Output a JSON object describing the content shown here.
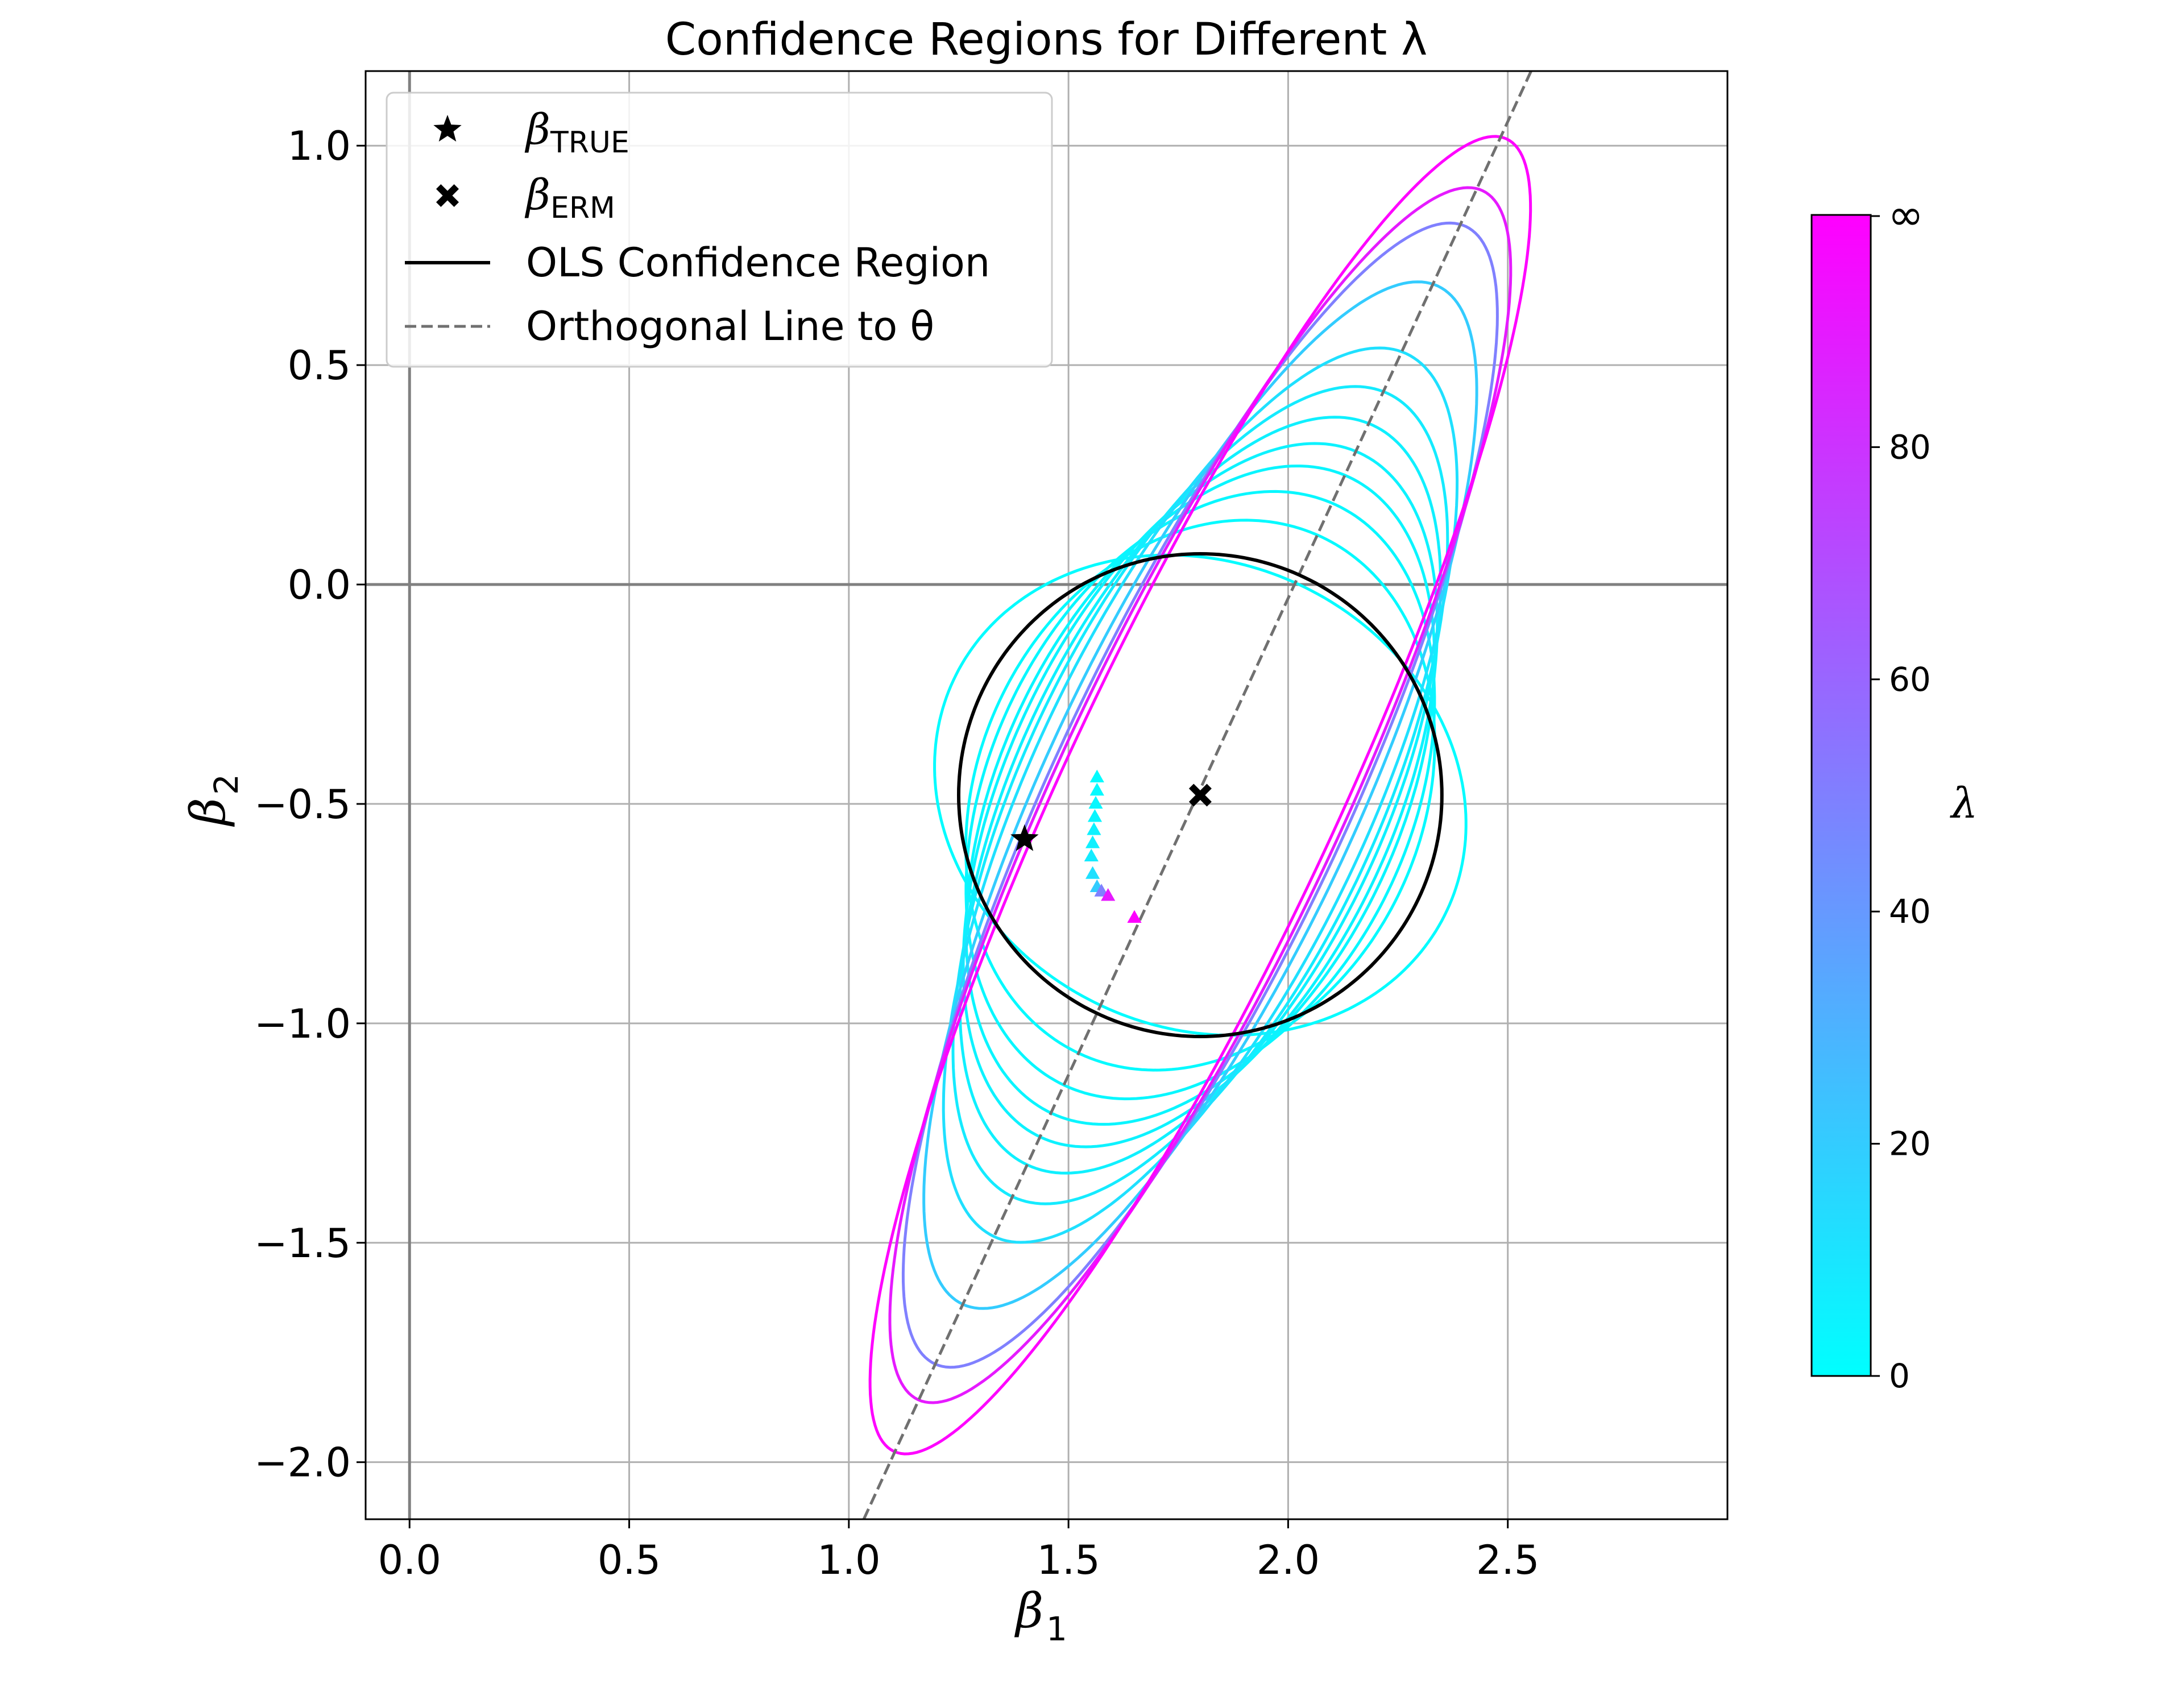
{
  "colors": {
    "ols_region": "#000000",
    "cmap_low": "#00ffff",
    "cmap_high": "#ff00ff",
    "orthogonal_line": "#707070",
    "grid": "#b0b0b0",
    "zero_axes": "#808080"
  },
  "chart_data": {
    "type": "line",
    "title": "Confidence Regions for Different λ",
    "xlabel": {
      "symbol": "β",
      "sub": "1"
    },
    "ylabel": {
      "symbol": "β",
      "sub": "2"
    },
    "xlim": [
      -0.1,
      3.0
    ],
    "ylim": [
      -2.13,
      1.17
    ],
    "xticks": [
      0.0,
      0.5,
      1.0,
      1.5,
      2.0,
      2.5
    ],
    "xtick_labels": [
      "0.0",
      "0.5",
      "1.0",
      "1.5",
      "2.0",
      "2.5"
    ],
    "yticks": [
      1.0,
      0.5,
      0.0,
      -0.5,
      -1.0,
      -1.5,
      -2.0
    ],
    "ytick_labels": [
      "1.0",
      "0.5",
      "0.0",
      "−0.5",
      "−1.0",
      "−1.5",
      "−2.0"
    ],
    "grid": true,
    "zero_lines": true,
    "legend": {
      "placement": "upper-left",
      "entries": [
        {
          "kind": "star",
          "symbol": "β",
          "sub": "TRUE"
        },
        {
          "kind": "cross",
          "symbol": "β",
          "sub": "ERM"
        },
        {
          "kind": "solid",
          "text": "OLS Confidence Region"
        },
        {
          "kind": "dashed",
          "text": "Orthogonal Line to θ"
        }
      ]
    },
    "beta_true": [
      1.4,
      -0.58
    ],
    "beta_erm": [
      1.8,
      -0.48
    ],
    "ols_region": {
      "center": [
        1.8,
        -0.48
      ],
      "semi_axis_1": 0.55,
      "semi_axis_2": 0.55,
      "angle_deg": 0
    },
    "orthogonal_line": [
      [
        1.034,
        -2.13
      ],
      [
        2.553,
        1.17
      ]
    ],
    "regions": [
      {
        "lambda": 1,
        "center": [
          1.8,
          -0.48
        ],
        "semi_axis_1": 0.53,
        "semi_axis_2": 0.62,
        "angle_deg": 65
      },
      {
        "lambda": 2,
        "center": [
          1.8,
          -0.48
        ],
        "semi_axis_1": 0.65,
        "semi_axis_2": 0.505,
        "angle_deg": 65
      },
      {
        "lambda": 3,
        "center": [
          1.8,
          -0.48
        ],
        "semi_axis_1": 0.73,
        "semi_axis_2": 0.48,
        "angle_deg": 65
      },
      {
        "lambda": 4,
        "center": [
          1.8,
          -0.48
        ],
        "semi_axis_1": 0.8,
        "semi_axis_2": 0.455,
        "angle_deg": 65
      },
      {
        "lambda": 5,
        "center": [
          1.8,
          -0.48
        ],
        "semi_axis_1": 0.86,
        "semi_axis_2": 0.44,
        "angle_deg": 65
      },
      {
        "lambda": 6,
        "center": [
          1.8,
          -0.48
        ],
        "semi_axis_1": 0.93,
        "semi_axis_2": 0.42,
        "angle_deg": 65
      },
      {
        "lambda": 8,
        "center": [
          1.8,
          -0.48
        ],
        "semi_axis_1": 1.01,
        "semi_axis_2": 0.405,
        "angle_deg": 65
      },
      {
        "lambda": 12,
        "center": [
          1.8,
          -0.48
        ],
        "semi_axis_1": 1.11,
        "semi_axis_2": 0.385,
        "angle_deg": 65
      },
      {
        "lambda": 20,
        "center": [
          1.8,
          -0.48
        ],
        "semi_axis_1": 1.28,
        "semi_axis_2": 0.355,
        "angle_deg": 65
      },
      {
        "lambda": 50,
        "center": [
          1.8,
          -0.48
        ],
        "semi_axis_1": 1.43,
        "semi_axis_2": 0.335,
        "angle_deg": 65
      },
      {
        "lambda": 90,
        "center": [
          1.8,
          -0.48
        ],
        "semi_axis_1": 1.52,
        "semi_axis_2": 0.325,
        "angle_deg": 65
      },
      {
        "lambda": 100,
        "center": [
          1.8,
          -0.48
        ],
        "semi_axis_1": 1.65,
        "semi_axis_2": 0.31,
        "angle_deg": 65
      }
    ],
    "estimates": [
      {
        "lambda": 1,
        "x": 1.565,
        "y": -0.44
      },
      {
        "lambda": 2,
        "x": 1.565,
        "y": -0.47
      },
      {
        "lambda": 3,
        "x": 1.562,
        "y": -0.5
      },
      {
        "lambda": 4,
        "x": 1.56,
        "y": -0.53
      },
      {
        "lambda": 5,
        "x": 1.558,
        "y": -0.56
      },
      {
        "lambda": 6,
        "x": 1.555,
        "y": -0.59
      },
      {
        "lambda": 8,
        "x": 1.552,
        "y": -0.62
      },
      {
        "lambda": 12,
        "x": 1.555,
        "y": -0.66
      },
      {
        "lambda": 20,
        "x": 1.565,
        "y": -0.69
      },
      {
        "lambda": 50,
        "x": 1.575,
        "y": -0.7
      },
      {
        "lambda": 90,
        "x": 1.59,
        "y": -0.71
      },
      {
        "lambda": 100,
        "x": 1.65,
        "y": -0.76
      }
    ],
    "colorbar": {
      "label": "λ",
      "min": 0,
      "max": 100,
      "ticks": [
        0,
        20,
        40,
        60,
        80
      ],
      "tick_labels": [
        "0",
        "20",
        "40",
        "60",
        "80"
      ],
      "top_label": "∞"
    }
  }
}
